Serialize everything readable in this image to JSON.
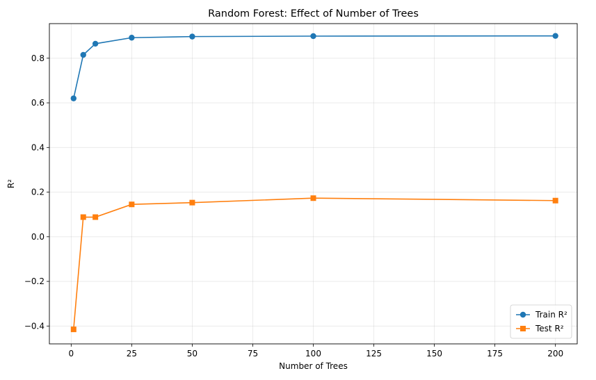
{
  "chart_data": {
    "type": "line",
    "title": "Random Forest: Effect of Number of Trees",
    "xlabel": "Number of Trees",
    "ylabel": "R²",
    "x": [
      1,
      5,
      10,
      25,
      50,
      100,
      200
    ],
    "xlim": [
      -9,
      209
    ],
    "ylim": [
      -0.48,
      0.955
    ],
    "xticks": [
      0,
      25,
      50,
      75,
      100,
      125,
      150,
      175,
      200
    ],
    "xtick_labels": [
      "0",
      "25",
      "50",
      "75",
      "100",
      "125",
      "150",
      "175",
      "200"
    ],
    "yticks": [
      -0.4,
      -0.2,
      0.0,
      0.2,
      0.4,
      0.6,
      0.8
    ],
    "ytick_labels": [
      "−0.4",
      "−0.2",
      "0.0",
      "0.2",
      "0.4",
      "0.6",
      "0.8"
    ],
    "grid": true,
    "legend_position": "lower-right",
    "series": [
      {
        "name": "Train R²",
        "values": [
          0.62,
          0.815,
          0.865,
          0.892,
          0.897,
          0.899,
          0.9
        ],
        "color": "#1f77b4",
        "marker": "circle"
      },
      {
        "name": "Test R²",
        "values": [
          -0.415,
          0.088,
          0.088,
          0.145,
          0.153,
          0.173,
          0.162
        ],
        "color": "#ff7f0e",
        "marker": "square"
      }
    ]
  }
}
